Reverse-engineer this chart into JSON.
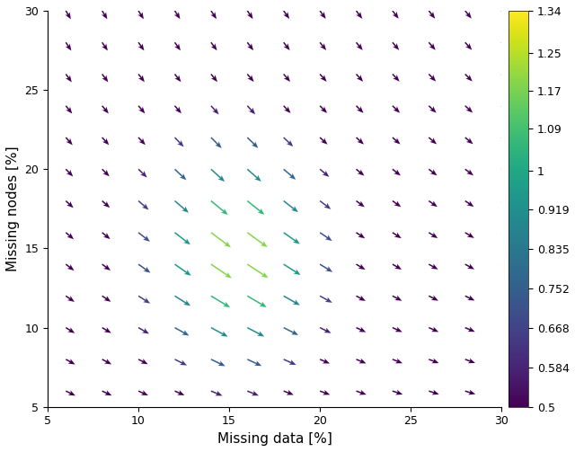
{
  "x_min": 5,
  "x_max": 30,
  "y_min": 5,
  "y_max": 30,
  "x_ticks": [
    5,
    10,
    15,
    20,
    25,
    30
  ],
  "y_ticks": [
    5,
    10,
    15,
    20,
    25,
    30
  ],
  "xlabel": "Missing data [%]",
  "ylabel": "Missing nodes [%]",
  "cbar_ticks": [
    0.5,
    0.584,
    0.668,
    0.752,
    0.835,
    0.919,
    1.0,
    1.09,
    1.17,
    1.25,
    1.34
  ],
  "cbar_labels": [
    "0.5",
    "0.584",
    "0.668",
    "0.752",
    "0.835",
    "0.919",
    "1",
    "1.09",
    "1.17",
    "1.25",
    "1.34"
  ],
  "vmin": 0.5,
  "vmax": 1.34,
  "colormap": "viridis",
  "background_color": "#ffffff"
}
